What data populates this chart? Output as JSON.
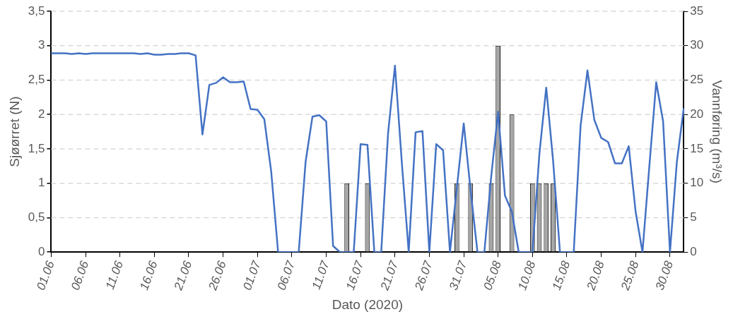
{
  "chart_data": {
    "type": "bar",
    "xlabel": "Dato (2020)",
    "ylabel": "Sjøørret (N)",
    "y2label": "Vannføring (m³/s)",
    "categories": [
      "01.06",
      null,
      null,
      null,
      null,
      "06.06",
      null,
      null,
      null,
      null,
      "11.06",
      null,
      null,
      null,
      null,
      "16.06",
      null,
      null,
      null,
      null,
      "21.06",
      null,
      null,
      null,
      null,
      "26.06",
      null,
      null,
      null,
      null,
      "01.07",
      null,
      null,
      null,
      null,
      "06.07",
      null,
      null,
      null,
      null,
      "11.07",
      null,
      null,
      null,
      null,
      "16.07",
      null,
      null,
      null,
      null,
      "21.07",
      null,
      null,
      null,
      null,
      "26.07",
      null,
      null,
      null,
      null,
      "31.07",
      null,
      null,
      null,
      null,
      "05.08",
      null,
      null,
      null,
      null,
      "10.08",
      null,
      null,
      null,
      null,
      "15.08",
      null,
      null,
      null,
      null,
      "20.08",
      null,
      null,
      null,
      null,
      "25.08",
      null,
      null,
      null,
      null,
      "30.08",
      null,
      null
    ],
    "series": [
      {
        "color": "#a6a6a6",
        "values": [
          null,
          null,
          null,
          null,
          null,
          null,
          null,
          null,
          null,
          null,
          null,
          null,
          null,
          null,
          null,
          null,
          null,
          null,
          null,
          null,
          null,
          null,
          null,
          null,
          null,
          null,
          null,
          null,
          null,
          null,
          null,
          null,
          null,
          null,
          null,
          null,
          null,
          null,
          null,
          null,
          null,
          null,
          null,
          1,
          null,
          null,
          1,
          null,
          null,
          null,
          null,
          null,
          null,
          null,
          null,
          null,
          null,
          null,
          null,
          1,
          null,
          1,
          null,
          null,
          1,
          3,
          null,
          2,
          null,
          null,
          1,
          1,
          1,
          1,
          null,
          null,
          null,
          null,
          null,
          null,
          null,
          null,
          null,
          null,
          null,
          null,
          null,
          null,
          null,
          null,
          null,
          null,
          null
        ]
      },
      {
        "type": "line",
        "axis": "y2",
        "color": "#4472c4",
        "values": [
          28.9,
          28.9,
          28.9,
          28.8,
          28.9,
          28.8,
          28.9,
          28.9,
          28.9,
          28.9,
          28.9,
          28.9,
          28.9,
          28.8,
          28.9,
          28.7,
          28.7,
          28.8,
          28.8,
          28.9,
          28.9,
          28.6,
          17.1,
          24.3,
          24.6,
          25.4,
          24.7,
          24.7,
          24.8,
          20.8,
          20.7,
          19.3,
          11.7,
          0,
          0,
          0,
          0,
          13.1,
          19.7,
          19.9,
          19.0,
          0.9,
          0,
          0,
          0,
          15.7,
          15.6,
          0,
          0,
          17.3,
          27.1,
          13,
          0,
          17.4,
          17.6,
          0,
          15.7,
          14.8,
          0,
          9.3,
          18.7,
          9,
          0,
          0,
          11,
          20.4,
          8.2,
          5.9,
          0,
          0,
          0,
          14.2,
          23.9,
          13.3,
          0,
          0,
          0,
          18.4,
          26.4,
          19.2,
          16.6,
          16.0,
          12.9,
          12.9,
          15.4,
          5.9,
          0,
          12.5,
          24.7,
          19.0,
          0,
          13.1,
          20.9
        ]
      }
    ],
    "ylim": [
      0,
      3.5
    ],
    "yticks": [
      0,
      {
        "value": 0.5,
        "label": "0,5"
      },
      1,
      {
        "value": 1.5,
        "label": "1,5"
      },
      2,
      {
        "value": 2.5,
        "label": "2,5"
      },
      3,
      {
        "value": 3.5,
        "label": "3,5"
      }
    ],
    "y2lim": [
      0,
      35
    ],
    "y2ticks": [
      0,
      5,
      10,
      15,
      20,
      25,
      30,
      35
    ],
    "grid": "y"
  }
}
